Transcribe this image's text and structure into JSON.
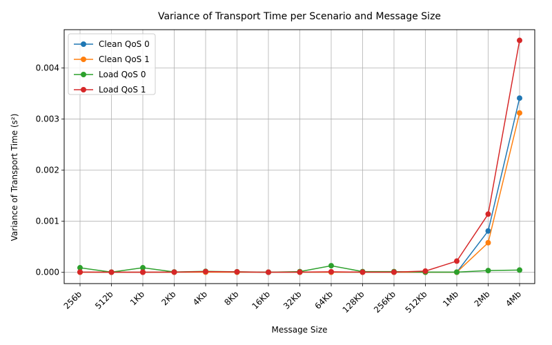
{
  "chart_data": {
    "type": "line",
    "title": "Variance of Transport Time per Scenario and Message Size",
    "xlabel": "Message Size",
    "ylabel": "Variance of Transport Time (s²)",
    "categories": [
      "256b",
      "512b",
      "1Kb",
      "2Kb",
      "4Kb",
      "8Kb",
      "16Kb",
      "32Kb",
      "64Kb",
      "128Kb",
      "256Kb",
      "512Kb",
      "1Mb",
      "2Mb",
      "4Mb"
    ],
    "ylim": [
      -0.00022,
      0.00475
    ],
    "yticks": [
      0.0,
      0.001,
      0.002,
      0.003,
      0.004
    ],
    "ytick_labels": [
      "0.000",
      "0.001",
      "0.002",
      "0.003",
      "0.004"
    ],
    "grid": true,
    "legend_position": "top-left",
    "series": [
      {
        "name": "Clean QoS 0",
        "color": "#1f77b4",
        "values": [
          5e-06,
          2e-06,
          3e-06,
          4e-06,
          6e-06,
          4e-06,
          3e-06,
          2e-06,
          4e-06,
          3e-06,
          3e-06,
          2e-06,
          3e-06,
          0.00081,
          0.00341
        ]
      },
      {
        "name": "Clean QoS 1",
        "color": "#ff7f0e",
        "values": [
          3e-06,
          2e-06,
          3e-06,
          3e-06,
          4e-06,
          3e-06,
          2e-06,
          2e-06,
          3e-06,
          3e-06,
          2e-06,
          2e-06,
          3e-06,
          0.00058,
          0.00312
        ]
      },
      {
        "name": "Load QoS 0",
        "color": "#2ca02c",
        "values": [
          9e-05,
          5e-06,
          9e-05,
          8e-06,
          2e-05,
          1.2e-05,
          3e-06,
          1.5e-05,
          0.00013,
          1.5e-05,
          1.5e-05,
          5e-06,
          5e-06,
          3.5e-05,
          4.5e-05
        ]
      },
      {
        "name": "Load QoS 1",
        "color": "#d62728",
        "values": [
          5e-06,
          3e-06,
          3e-06,
          5e-06,
          1.5e-05,
          1e-05,
          2e-06,
          4e-06,
          1.2e-05,
          4e-06,
          5e-06,
          2.5e-05,
          0.00022,
          0.00114,
          0.00454
        ]
      }
    ]
  }
}
